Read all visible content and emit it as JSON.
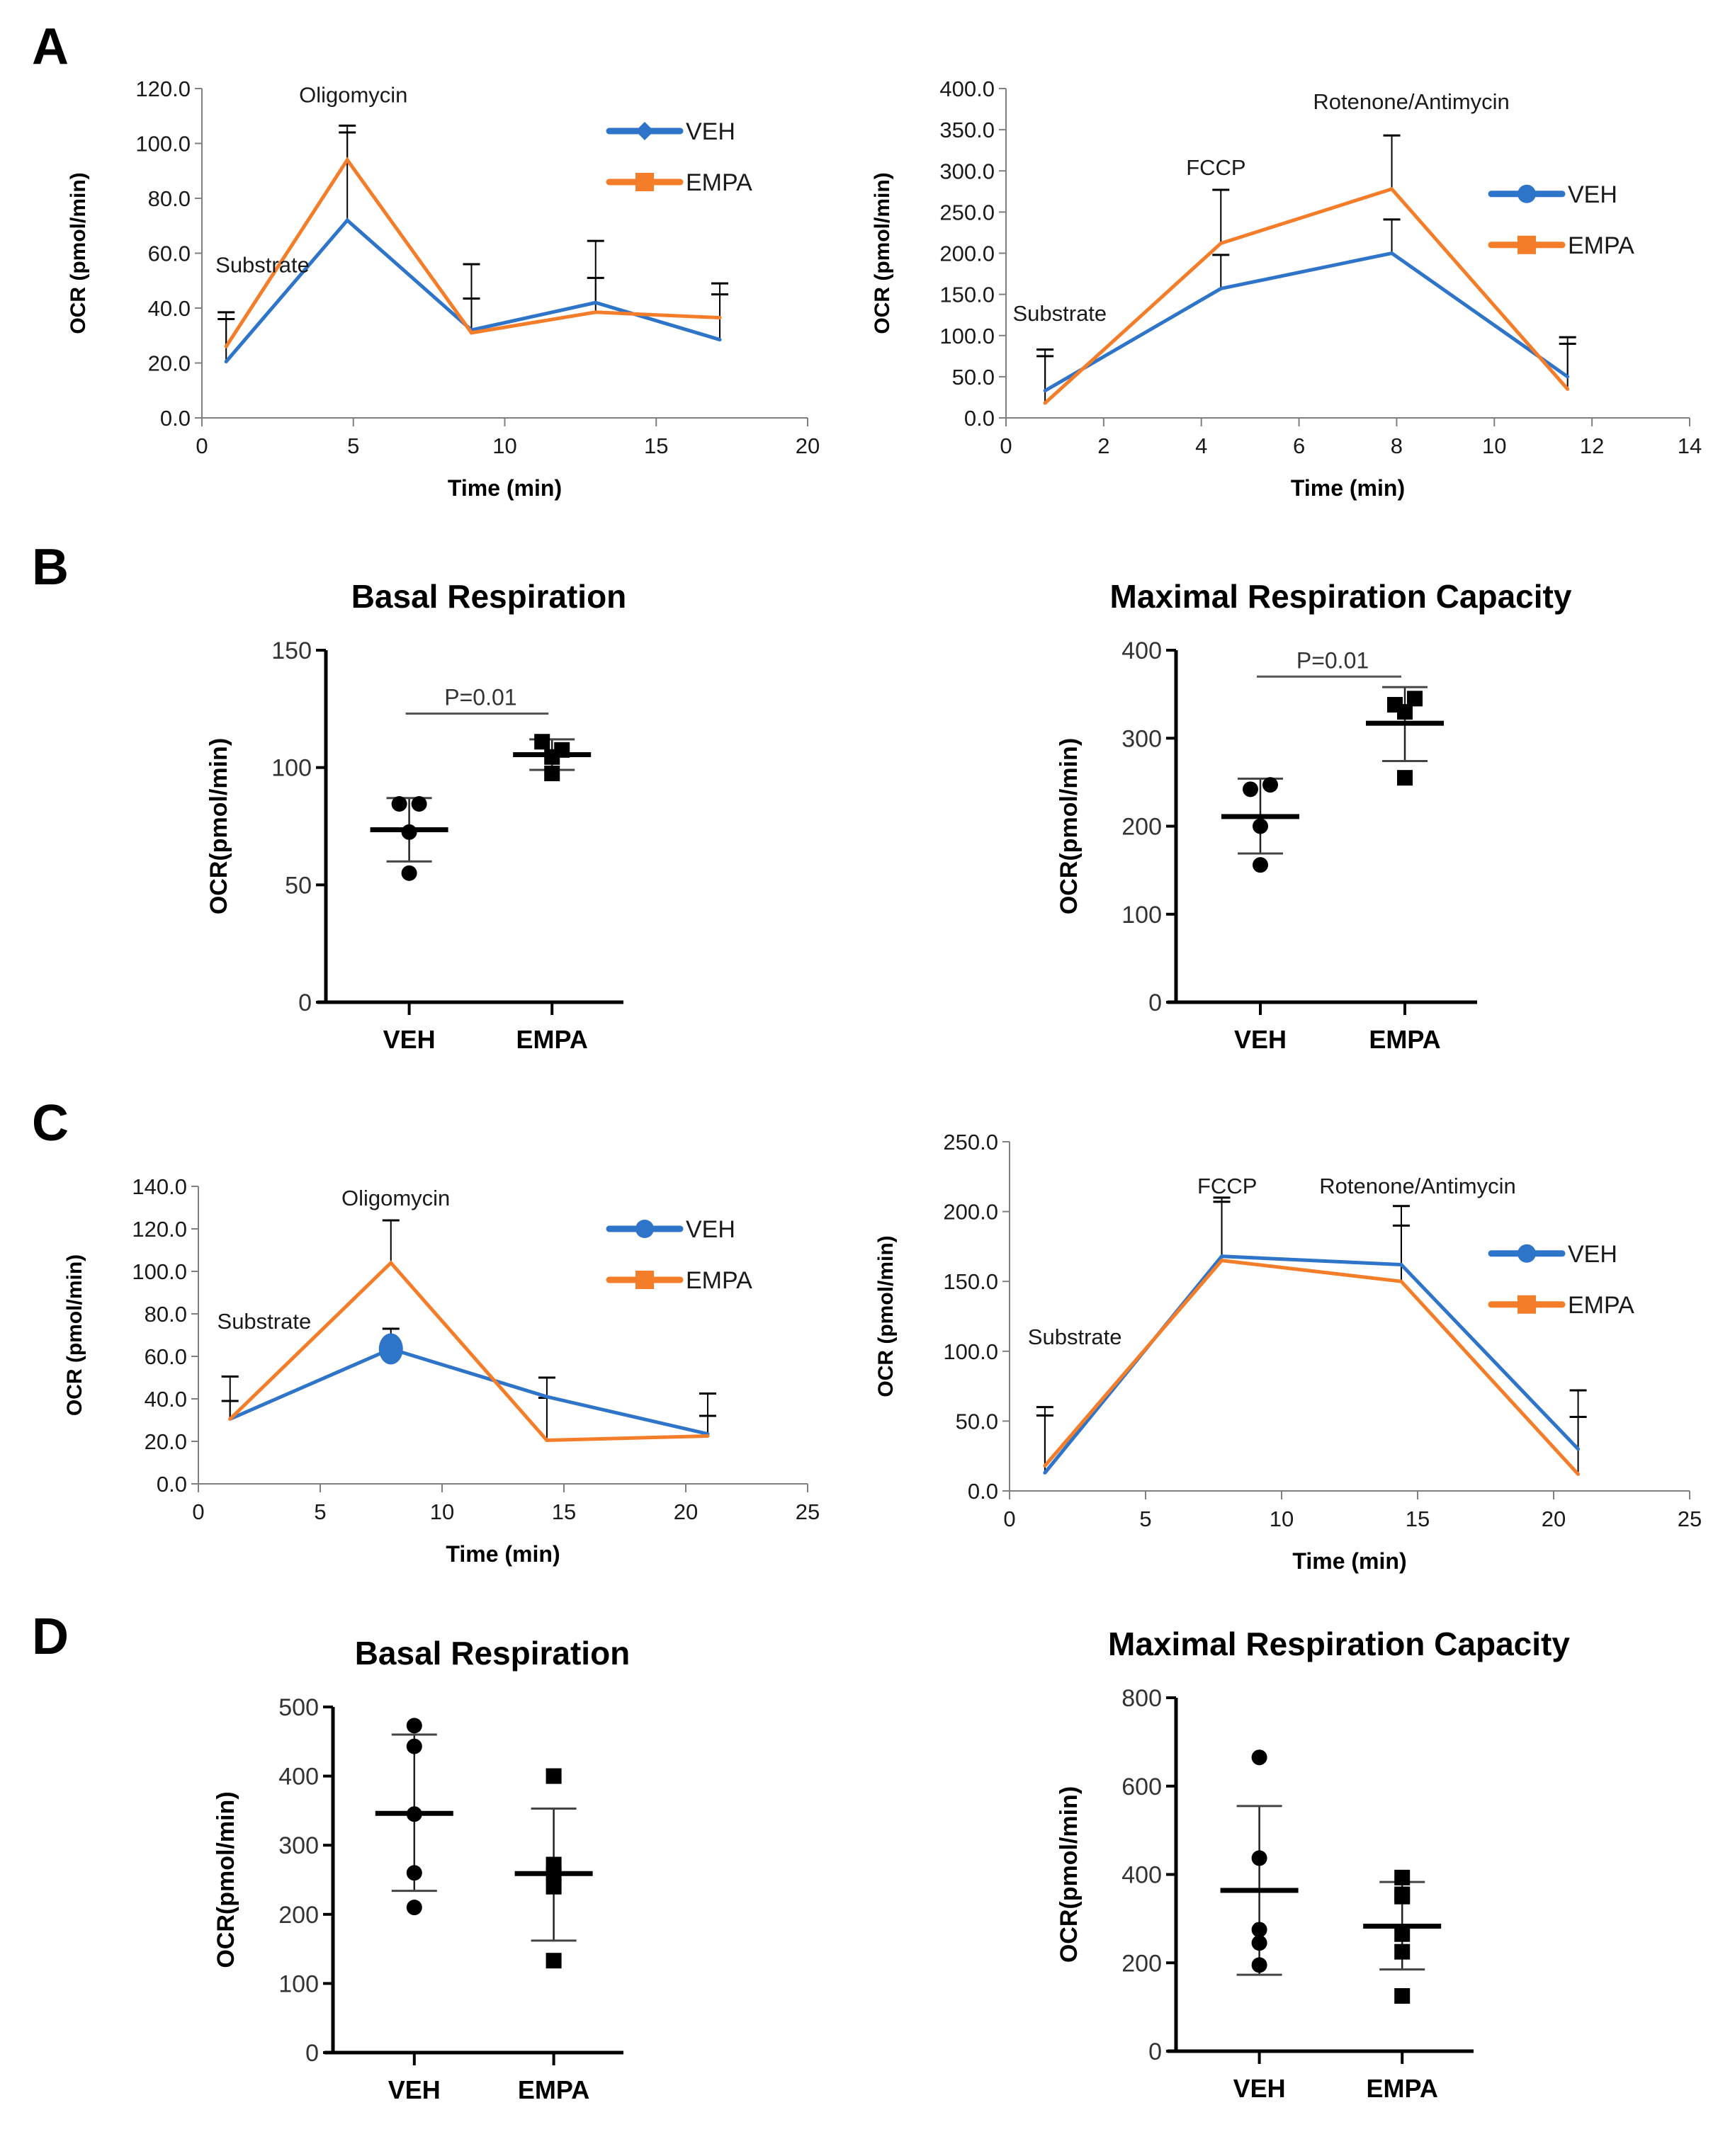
{
  "panel_labels": [
    "A",
    "B",
    "C",
    "D"
  ],
  "colors": {
    "veh": "#2e74c9",
    "empa": "#f47d2a",
    "axis_line": "#7f7f7f",
    "text": "#1a1a1a"
  },
  "chart_data": [
    {
      "id": "A-left",
      "panel": "A",
      "type": "line",
      "title": "",
      "xlabel": "Time (min)",
      "ylabel": "OCR (pmol/min)",
      "xlim": [
        0,
        20
      ],
      "xticks": [
        0,
        5,
        10,
        15,
        20
      ],
      "ylim": [
        0,
        120
      ],
      "yticks": [
        0,
        20,
        40,
        60,
        80,
        100,
        120
      ],
      "ytick_decimals": 1,
      "grid": false,
      "legend": "top-right",
      "annotations": [
        {
          "text": "Oligomycin",
          "x": 5,
          "y": 115
        },
        {
          "text": "Substrate",
          "x": 2,
          "y": 53
        }
      ],
      "series": [
        {
          "name": "VEH",
          "color": "#2e74c9",
          "marker": "diamond",
          "x": [
            0.8,
            4.8,
            8.9,
            13,
            17.1
          ],
          "y": [
            20.5,
            72,
            32,
            42,
            28.5
          ],
          "err_upper": [
            36,
            104,
            43.5,
            51,
            45
          ]
        },
        {
          "name": "EMPA",
          "color": "#f47d2a",
          "marker": "square",
          "x": [
            0.8,
            4.8,
            8.9,
            13,
            17.1
          ],
          "y": [
            26,
            94,
            31,
            38.5,
            36.5
          ],
          "err_upper": [
            38.5,
            106.5,
            56,
            64.5,
            49
          ]
        }
      ]
    },
    {
      "id": "A-right",
      "panel": "A",
      "type": "line",
      "title": "",
      "xlabel": "Time (min)",
      "ylabel": "OCR (pmol/min)",
      "xlim": [
        0,
        14
      ],
      "xticks": [
        0,
        2,
        4,
        6,
        8,
        10,
        12,
        14
      ],
      "ylim": [
        0,
        400
      ],
      "yticks": [
        0,
        50,
        100,
        150,
        200,
        250,
        300,
        350,
        400
      ],
      "ytick_decimals": 1,
      "grid": false,
      "legend": "right",
      "annotations": [
        {
          "text": "Rotenone/Antimycin",
          "x": 8.3,
          "y": 375
        },
        {
          "text": "FCCP",
          "x": 4.3,
          "y": 295
        },
        {
          "text": "Substrate",
          "x": 1.1,
          "y": 118
        }
      ],
      "series": [
        {
          "name": "VEH",
          "color": "#2e74c9",
          "marker": "circle",
          "x": [
            0.8,
            4.4,
            7.9,
            11.5
          ],
          "y": [
            33,
            157,
            200,
            50
          ],
          "err_upper": [
            75,
            198,
            241,
            90
          ]
        },
        {
          "name": "EMPA",
          "color": "#f47d2a",
          "marker": "square",
          "x": [
            0.8,
            4.4,
            7.9,
            11.5
          ],
          "y": [
            18,
            212,
            278,
            35
          ],
          "err_upper": [
            83,
            277,
            343,
            98
          ]
        }
      ]
    },
    {
      "id": "B-left",
      "panel": "B",
      "type": "scatter",
      "title": "Basal Respiration",
      "xlabel": "",
      "ylabel": "OCR(pmol/min)",
      "ylim": [
        0,
        150
      ],
      "yticks": [
        0,
        50,
        100,
        150
      ],
      "categories": [
        "VEH",
        "EMPA"
      ],
      "significance": {
        "text": "P=0.01",
        "y": 123
      },
      "groups": [
        {
          "name": "VEH",
          "marker": "circle",
          "points": [
            84.5,
            84.5,
            72.5,
            55
          ],
          "mean": 73.5,
          "sd_upper": 87,
          "sd_lower": 60
        },
        {
          "name": "EMPA",
          "marker": "square",
          "points": [
            111,
            107.5,
            104.5,
            97.5
          ],
          "mean": 105.5,
          "sd_upper": 112,
          "sd_lower": 99
        }
      ]
    },
    {
      "id": "B-right",
      "panel": "B",
      "type": "scatter",
      "title": "Maximal Respiration Capacity",
      "xlabel": "",
      "ylabel": "OCR(pmol/min)",
      "ylim": [
        0,
        400
      ],
      "yticks": [
        0,
        100,
        200,
        300,
        400
      ],
      "categories": [
        "VEH",
        "EMPA"
      ],
      "significance": {
        "text": "P=0.01",
        "y": 370
      },
      "groups": [
        {
          "name": "VEH",
          "marker": "circle",
          "points": [
            242,
            247,
            200,
            156
          ],
          "mean": 211,
          "sd_upper": 254,
          "sd_lower": 169
        },
        {
          "name": "EMPA",
          "marker": "square",
          "points": [
            338,
            345,
            330,
            255
          ],
          "mean": 317,
          "sd_upper": 358,
          "sd_lower": 274
        }
      ]
    },
    {
      "id": "C-left",
      "panel": "C",
      "type": "line",
      "title": "",
      "xlabel": "Time (min)",
      "ylabel": "OCR (pmol/min)",
      "xlim": [
        0,
        25
      ],
      "xticks": [
        0,
        5,
        10,
        15,
        20,
        25
      ],
      "ylim": [
        0,
        140
      ],
      "yticks": [
        0,
        20,
        40,
        60,
        80,
        100,
        120,
        140
      ],
      "ytick_decimals": 1,
      "grid": false,
      "legend": "top-right",
      "annotations": [
        {
          "text": "Oligomycin",
          "x": 8.1,
          "y": 131
        },
        {
          "text": "Substrate",
          "x": 2.7,
          "y": 73
        }
      ],
      "series": [
        {
          "name": "VEH",
          "color": "#2e74c9",
          "marker": "circle",
          "x": [
            1.3,
            7.9,
            14.3,
            20.9
          ],
          "y": [
            30.5,
            63.5,
            41,
            23.5
          ],
          "err_upper": [
            39,
            73,
            40.5,
            32
          ],
          "highlight_point": 1
        },
        {
          "name": "EMPA",
          "color": "#f47d2a",
          "marker": "square",
          "x": [
            1.3,
            7.9,
            14.3,
            20.9
          ],
          "y": [
            30.5,
            104,
            20.5,
            22.5
          ],
          "err_upper": [
            50.5,
            124,
            50,
            42.5
          ]
        }
      ]
    },
    {
      "id": "C-right",
      "panel": "C",
      "type": "line",
      "title": "",
      "xlabel": "Time (min)",
      "ylabel": "OCR (pmol/min)",
      "xlim": [
        0,
        25
      ],
      "xticks": [
        0,
        5,
        10,
        15,
        20,
        25
      ],
      "ylim": [
        0,
        250
      ],
      "yticks": [
        0,
        50,
        100,
        150,
        200,
        250
      ],
      "ytick_decimals": 1,
      "grid": false,
      "legend": "right",
      "annotations": [
        {
          "text": "FCCP",
          "x": 8,
          "y": 213
        },
        {
          "text": "Rotenone/Antimycin",
          "x": 15,
          "y": 213
        },
        {
          "text": "Substrate",
          "x": 2.4,
          "y": 105
        }
      ],
      "series": [
        {
          "name": "VEH",
          "color": "#2e74c9",
          "marker": "circle",
          "x": [
            1.3,
            7.8,
            14.4,
            20.9
          ],
          "y": [
            13,
            168,
            162,
            30
          ],
          "err_upper": [
            54,
            207,
            190,
            53
          ]
        },
        {
          "name": "EMPA",
          "color": "#f47d2a",
          "marker": "square",
          "x": [
            1.3,
            7.8,
            14.4,
            20.9
          ],
          "y": [
            18,
            165,
            150,
            12
          ],
          "err_upper": [
            60,
            210,
            204,
            72
          ]
        }
      ]
    },
    {
      "id": "D-left",
      "panel": "D",
      "type": "scatter",
      "title": "Basal Respiration",
      "xlabel": "",
      "ylabel": "OCR(pmol/min)",
      "ylim": [
        0,
        500
      ],
      "yticks": [
        0,
        100,
        200,
        300,
        400,
        500
      ],
      "categories": [
        "VEH",
        "EMPA"
      ],
      "groups": [
        {
          "name": "VEH",
          "marker": "circle",
          "points": [
            473,
            443,
            345,
            260,
            210
          ],
          "mean": 346,
          "sd_upper": 460,
          "sd_lower": 234
        },
        {
          "name": "EMPA",
          "marker": "square",
          "points": [
            400,
            272,
            258,
            240,
            133
          ],
          "mean": 259,
          "sd_upper": 353,
          "sd_lower": 162
        }
      ]
    },
    {
      "id": "D-right",
      "panel": "D",
      "type": "scatter",
      "title": "Maximal Respiration Capacity",
      "xlabel": "",
      "ylabel": "OCR(pmol/min)",
      "ylim": [
        0,
        800
      ],
      "yticks": [
        0,
        200,
        400,
        600,
        800
      ],
      "categories": [
        "VEH",
        "EMPA"
      ],
      "groups": [
        {
          "name": "VEH",
          "marker": "circle",
          "points": [
            665,
            437,
            275,
            245,
            195
          ],
          "mean": 364,
          "sd_upper": 555,
          "sd_lower": 173
        },
        {
          "name": "EMPA",
          "marker": "square",
          "points": [
            393,
            355,
            350,
            265,
            225,
            125
          ],
          "mean": 283,
          "sd_upper": 383,
          "sd_lower": 185
        }
      ]
    }
  ]
}
